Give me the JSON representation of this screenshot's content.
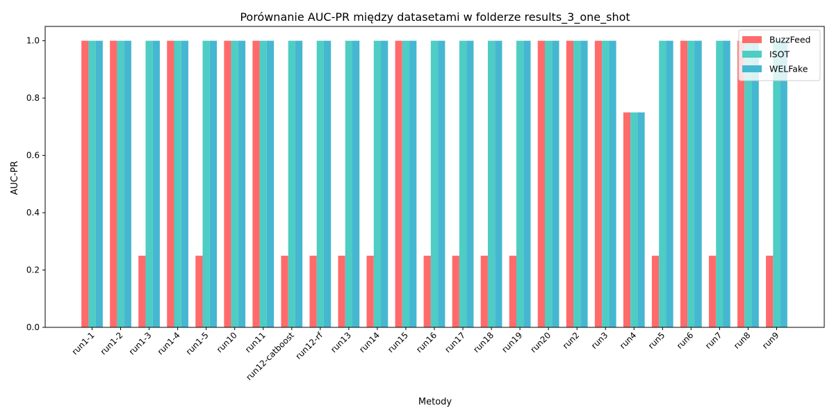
{
  "chart_data": {
    "type": "bar",
    "title": "Porównanie AUC-PR między datasetami w folderze results_3_one_shot",
    "xlabel": "Metody",
    "ylabel": "AUC-PR",
    "ylim": [
      0,
      1.05
    ],
    "yticks": [
      0.0,
      0.2,
      0.4,
      0.6,
      0.8,
      1.0
    ],
    "ytick_labels": [
      "0.0",
      "0.2",
      "0.4",
      "0.6",
      "0.8",
      "1.0"
    ],
    "grid": false,
    "legend_position": "top-right",
    "categories": [
      "run1-1",
      "run1-2",
      "run1-3",
      "run1-4",
      "run1-5",
      "run10",
      "run11",
      "run12-catboost",
      "run12-rf",
      "run13",
      "run14",
      "run15",
      "run16",
      "run17",
      "run18",
      "run19",
      "run20",
      "run2",
      "run3",
      "run4",
      "run5",
      "run6",
      "run7",
      "run8",
      "run9"
    ],
    "series": [
      {
        "name": "BuzzFeed",
        "color": "#ff6b6b",
        "values": [
          1,
          1,
          0.25,
          1,
          0.25,
          1,
          1,
          0.25,
          0.25,
          0.25,
          0.25,
          1,
          0.25,
          0.25,
          0.25,
          0.25,
          1,
          1,
          1,
          0.75,
          0.25,
          1,
          0.25,
          1,
          0.25
        ]
      },
      {
        "name": "ISOT",
        "color": "#4ecdc4",
        "values": [
          1,
          1,
          1,
          1,
          1,
          1,
          1,
          1,
          1,
          1,
          1,
          1,
          1,
          1,
          1,
          1,
          1,
          1,
          1,
          0.75,
          1,
          1,
          1,
          1,
          1
        ]
      },
      {
        "name": "WELFake",
        "color": "#45b7d1",
        "values": [
          1,
          1,
          1,
          1,
          1,
          1,
          1,
          1,
          1,
          1,
          1,
          1,
          1,
          1,
          1,
          1,
          1,
          1,
          1,
          0.75,
          1,
          1,
          1,
          1,
          1
        ]
      }
    ]
  }
}
